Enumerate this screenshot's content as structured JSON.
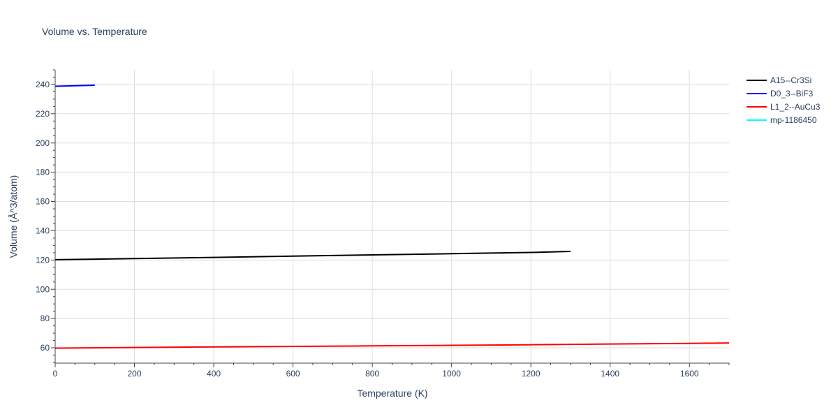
{
  "chart_data": {
    "type": "line",
    "title": "Volume vs. Temperature",
    "xlabel": "Temperature (K)",
    "ylabel": "Volume (Å^3/atom)",
    "xlim": [
      0,
      1700
    ],
    "ylim": [
      50,
      250
    ],
    "xticks": [
      0,
      200,
      400,
      600,
      800,
      1000,
      1200,
      1400,
      1600
    ],
    "yticks": [
      60,
      80,
      100,
      120,
      140,
      160,
      180,
      200,
      220,
      240
    ],
    "grid": true,
    "legend_position": "top-right",
    "series": [
      {
        "name": "A15--Cr3Si",
        "color": "#000000",
        "x": [
          0,
          200,
          400,
          600,
          800,
          1000,
          1200,
          1300
        ],
        "y": [
          120.2,
          121.0,
          121.8,
          122.7,
          123.5,
          124.3,
          125.2,
          125.9
        ]
      },
      {
        "name": "D0_3--BiF3",
        "color": "#0000ff",
        "x": [
          0,
          50,
          100
        ],
        "y": [
          238.8,
          239.1,
          239.5
        ]
      },
      {
        "name": "L1_2--AuCu3",
        "color": "#ff0000",
        "x": [
          0,
          200,
          400,
          600,
          800,
          1000,
          1200,
          1400,
          1600,
          1700
        ],
        "y": [
          59.8,
          60.2,
          60.6,
          61.0,
          61.3,
          61.7,
          62.1,
          62.6,
          63.0,
          63.3
        ]
      },
      {
        "name": "mp-1186450",
        "color": "#00ffff",
        "x": [],
        "y": []
      }
    ]
  }
}
